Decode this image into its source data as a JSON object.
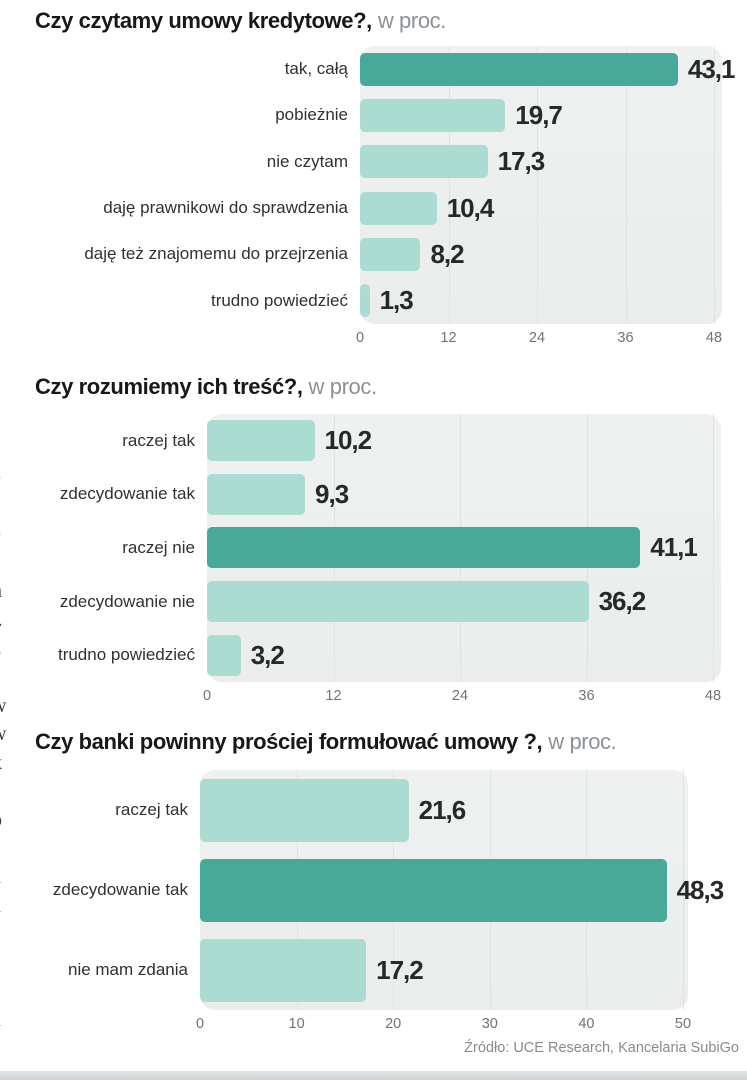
{
  "page": {
    "source": "Źródło: UCE Research, Kancelaria SubiGo"
  },
  "colors": {
    "bar_emphasis": "#49a998",
    "bar_normal": "#aadcd1",
    "plot_bg": "#edf0ef",
    "value_label": "#26282a",
    "axis_tick": "#6e7478",
    "title": "#16181a",
    "subtitle_gray": "#8b9196"
  },
  "edge_fragments": [
    "e",
    "-",
    "e",
    "ś",
    "n",
    "ł.",
    "z",
    "-",
    "w",
    "w",
    "k",
    ".",
    "o",
    ".",
    "a",
    "a",
    "j",
    "i",
    "-",
    "a",
    "."
  ],
  "chart_data": [
    {
      "type": "bar",
      "orientation": "horizontal",
      "title": "Czy czytamy umowy kredytowe?,",
      "unit_label": "w proc.",
      "categories": [
        "tak, całą",
        "pobieżnie",
        "nie czytam",
        "daję prawnikowi do sprawdzenia",
        "daję też znajomemu do przejrzenia",
        "trudno powiedzieć"
      ],
      "values": [
        43.1,
        19.7,
        17.3,
        10.4,
        8.2,
        1.3
      ],
      "value_labels": [
        "43,1",
        "19,7",
        "17,3",
        "10,4",
        "8,2",
        "1,3"
      ],
      "emphasis_index": 0,
      "xlim": [
        0,
        48
      ],
      "xticks": [
        0,
        12,
        24,
        36,
        48
      ],
      "grid": true,
      "legend": false
    },
    {
      "type": "bar",
      "orientation": "horizontal",
      "title": "Czy rozumiemy ich treść?,",
      "unit_label": "w proc.",
      "categories": [
        "raczej tak",
        "zdecydowanie tak",
        "raczej nie",
        "zdecydowanie nie",
        "trudno powiedzieć"
      ],
      "values": [
        10.2,
        9.3,
        41.1,
        36.2,
        3.2
      ],
      "value_labels": [
        "10,2",
        "9,3",
        "41,1",
        "36,2",
        "3,2"
      ],
      "emphasis_index": 2,
      "xlim": [
        0,
        48
      ],
      "xticks": [
        0,
        12,
        24,
        36,
        48
      ],
      "grid": true,
      "legend": false
    },
    {
      "type": "bar",
      "orientation": "horizontal",
      "title": "Czy banki powinny prościej formułować umowy ?,",
      "unit_label": "w proc.",
      "categories": [
        "raczej tak",
        "zdecydowanie tak",
        "nie mam zdania"
      ],
      "values": [
        21.6,
        48.3,
        17.2
      ],
      "value_labels": [
        "21,6",
        "48,3",
        "17,2"
      ],
      "emphasis_index": 1,
      "xlim": [
        0,
        50
      ],
      "xticks": [
        0,
        10,
        20,
        30,
        40,
        50
      ],
      "grid": true,
      "legend": false
    }
  ]
}
